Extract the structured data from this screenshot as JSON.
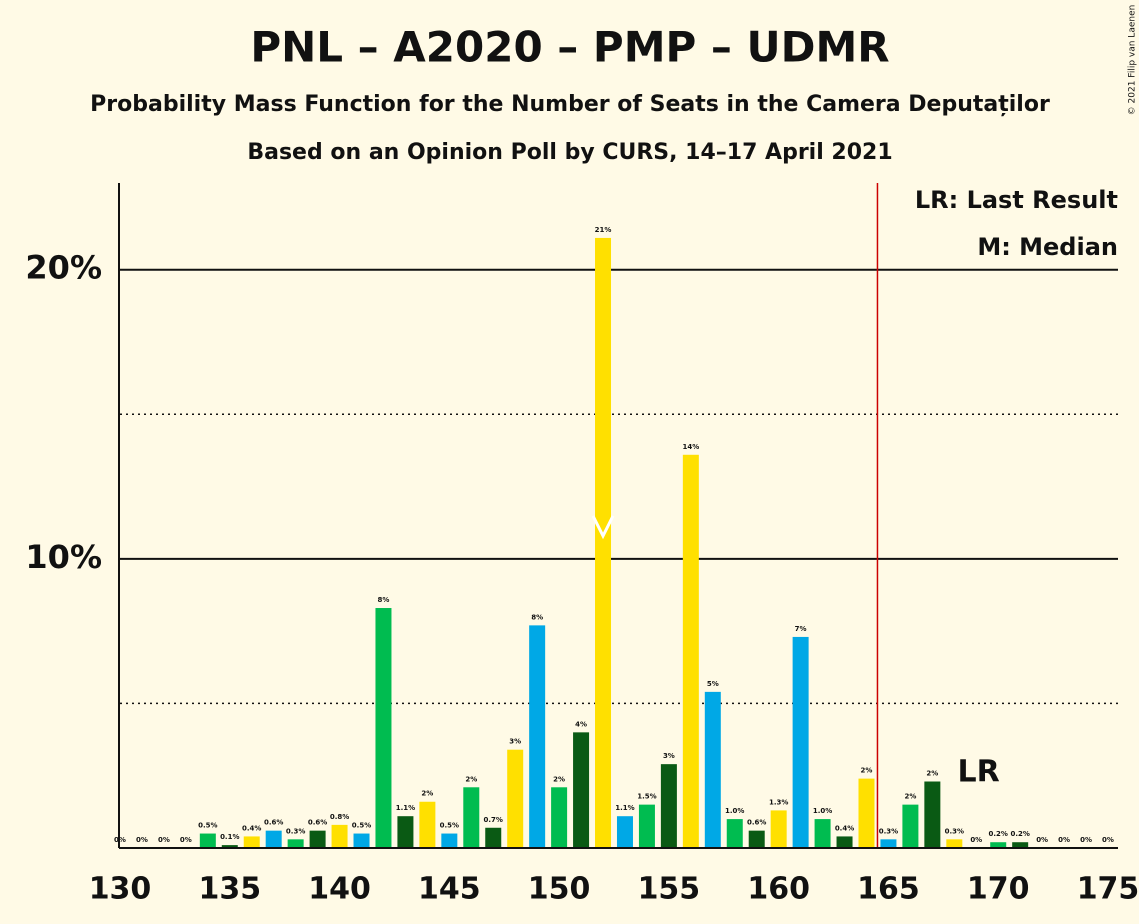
{
  "chart_data": {
    "type": "bar",
    "title": "PNL – A2020 – PMP – UDMR",
    "subtitle": "Probability Mass Function for the Number of Seats in the Camera Deputaților",
    "subtitle2": "Based on an Opinion Poll by CURS, 14–17 April 2021",
    "copyright": "© 2021 Filip van Laenen",
    "legend": [
      "LR: Last Result",
      "M: Median"
    ],
    "lr_label": "LR",
    "last_result": 165,
    "median": 152,
    "x": [
      130,
      131,
      132,
      133,
      134,
      135,
      136,
      137,
      138,
      139,
      140,
      141,
      142,
      143,
      144,
      145,
      146,
      147,
      148,
      149,
      150,
      151,
      152,
      153,
      154,
      155,
      156,
      157,
      158,
      159,
      160,
      161,
      162,
      163,
      164,
      165,
      166,
      167,
      168,
      169,
      170,
      171,
      172,
      173,
      174,
      175
    ],
    "values": [
      0,
      0,
      0,
      0,
      0.5,
      0.1,
      0.4,
      0.6,
      0.3,
      0.6,
      0.8,
      0.5,
      8.3,
      1.1,
      1.6,
      0.5,
      2.1,
      0.7,
      3.4,
      7.7,
      2.1,
      4.0,
      21.1,
      1.1,
      1.5,
      2.9,
      13.6,
      5.4,
      1.0,
      0.6,
      1.3,
      7.3,
      1.0,
      0.4,
      2.4,
      0.3,
      1.5,
      2.3,
      0.3,
      0,
      0.2,
      0.2,
      0,
      0,
      0,
      0
    ],
    "value_labels": [
      "0%",
      "0%",
      "0%",
      "0%",
      "0.5%",
      "0.1%",
      "0.4%",
      "0.6%",
      "0.3%",
      "0.6%",
      "0.8%",
      "0.5%",
      "8%",
      "1.1%",
      "2%",
      "0.5%",
      "2%",
      "0.7%",
      "3%",
      "8%",
      "2%",
      "4%",
      "21%",
      "1.1%",
      "1.5%",
      "3%",
      "14%",
      "5%",
      "1.0%",
      "0.6%",
      "1.3%",
      "7%",
      "1.0%",
      "0.4%",
      "2%",
      "0.3%",
      "2%",
      "2%",
      "0.3%",
      "0%",
      "0.2%",
      "0.2%",
      "0%",
      "0%",
      "0%",
      "0%"
    ],
    "colors": [
      "#00bc50",
      "#0a5a14",
      "#ffe000",
      "#00a8e6",
      "#00bc50",
      "#0a5a14",
      "#ffe000",
      "#00a8e6",
      "#00bc50",
      "#0a5a14",
      "#ffe000",
      "#00a8e6",
      "#00bc50",
      "#0a5a14",
      "#ffe000",
      "#00a8e6",
      "#00bc50",
      "#0a5a14",
      "#ffe000",
      "#00a8e6",
      "#00bc50",
      "#0a5a14",
      "#ffe000",
      "#00a8e6",
      "#00bc50",
      "#0a5a14",
      "#ffe000",
      "#00a8e6",
      "#00bc50",
      "#0a5a14",
      "#ffe000",
      "#00a8e6",
      "#00bc50",
      "#0a5a14",
      "#ffe000",
      "#00a8e6",
      "#00bc50",
      "#0a5a14",
      "#ffe000",
      "#00a8e6",
      "#00bc50",
      "#0a5a14",
      "#ffe000",
      "#00a8e6",
      "#00bc50",
      "#0a5a14"
    ],
    "xlim": [
      130,
      175
    ],
    "xticks": [
      130,
      135,
      140,
      145,
      150,
      155,
      160,
      165,
      170,
      175
    ],
    "ylim": [
      0,
      23
    ],
    "yticks": [
      {
        "value": 10,
        "label": "10%"
      },
      {
        "value": 20,
        "label": "20%"
      }
    ],
    "minor_yticks": [
      5,
      15
    ]
  }
}
